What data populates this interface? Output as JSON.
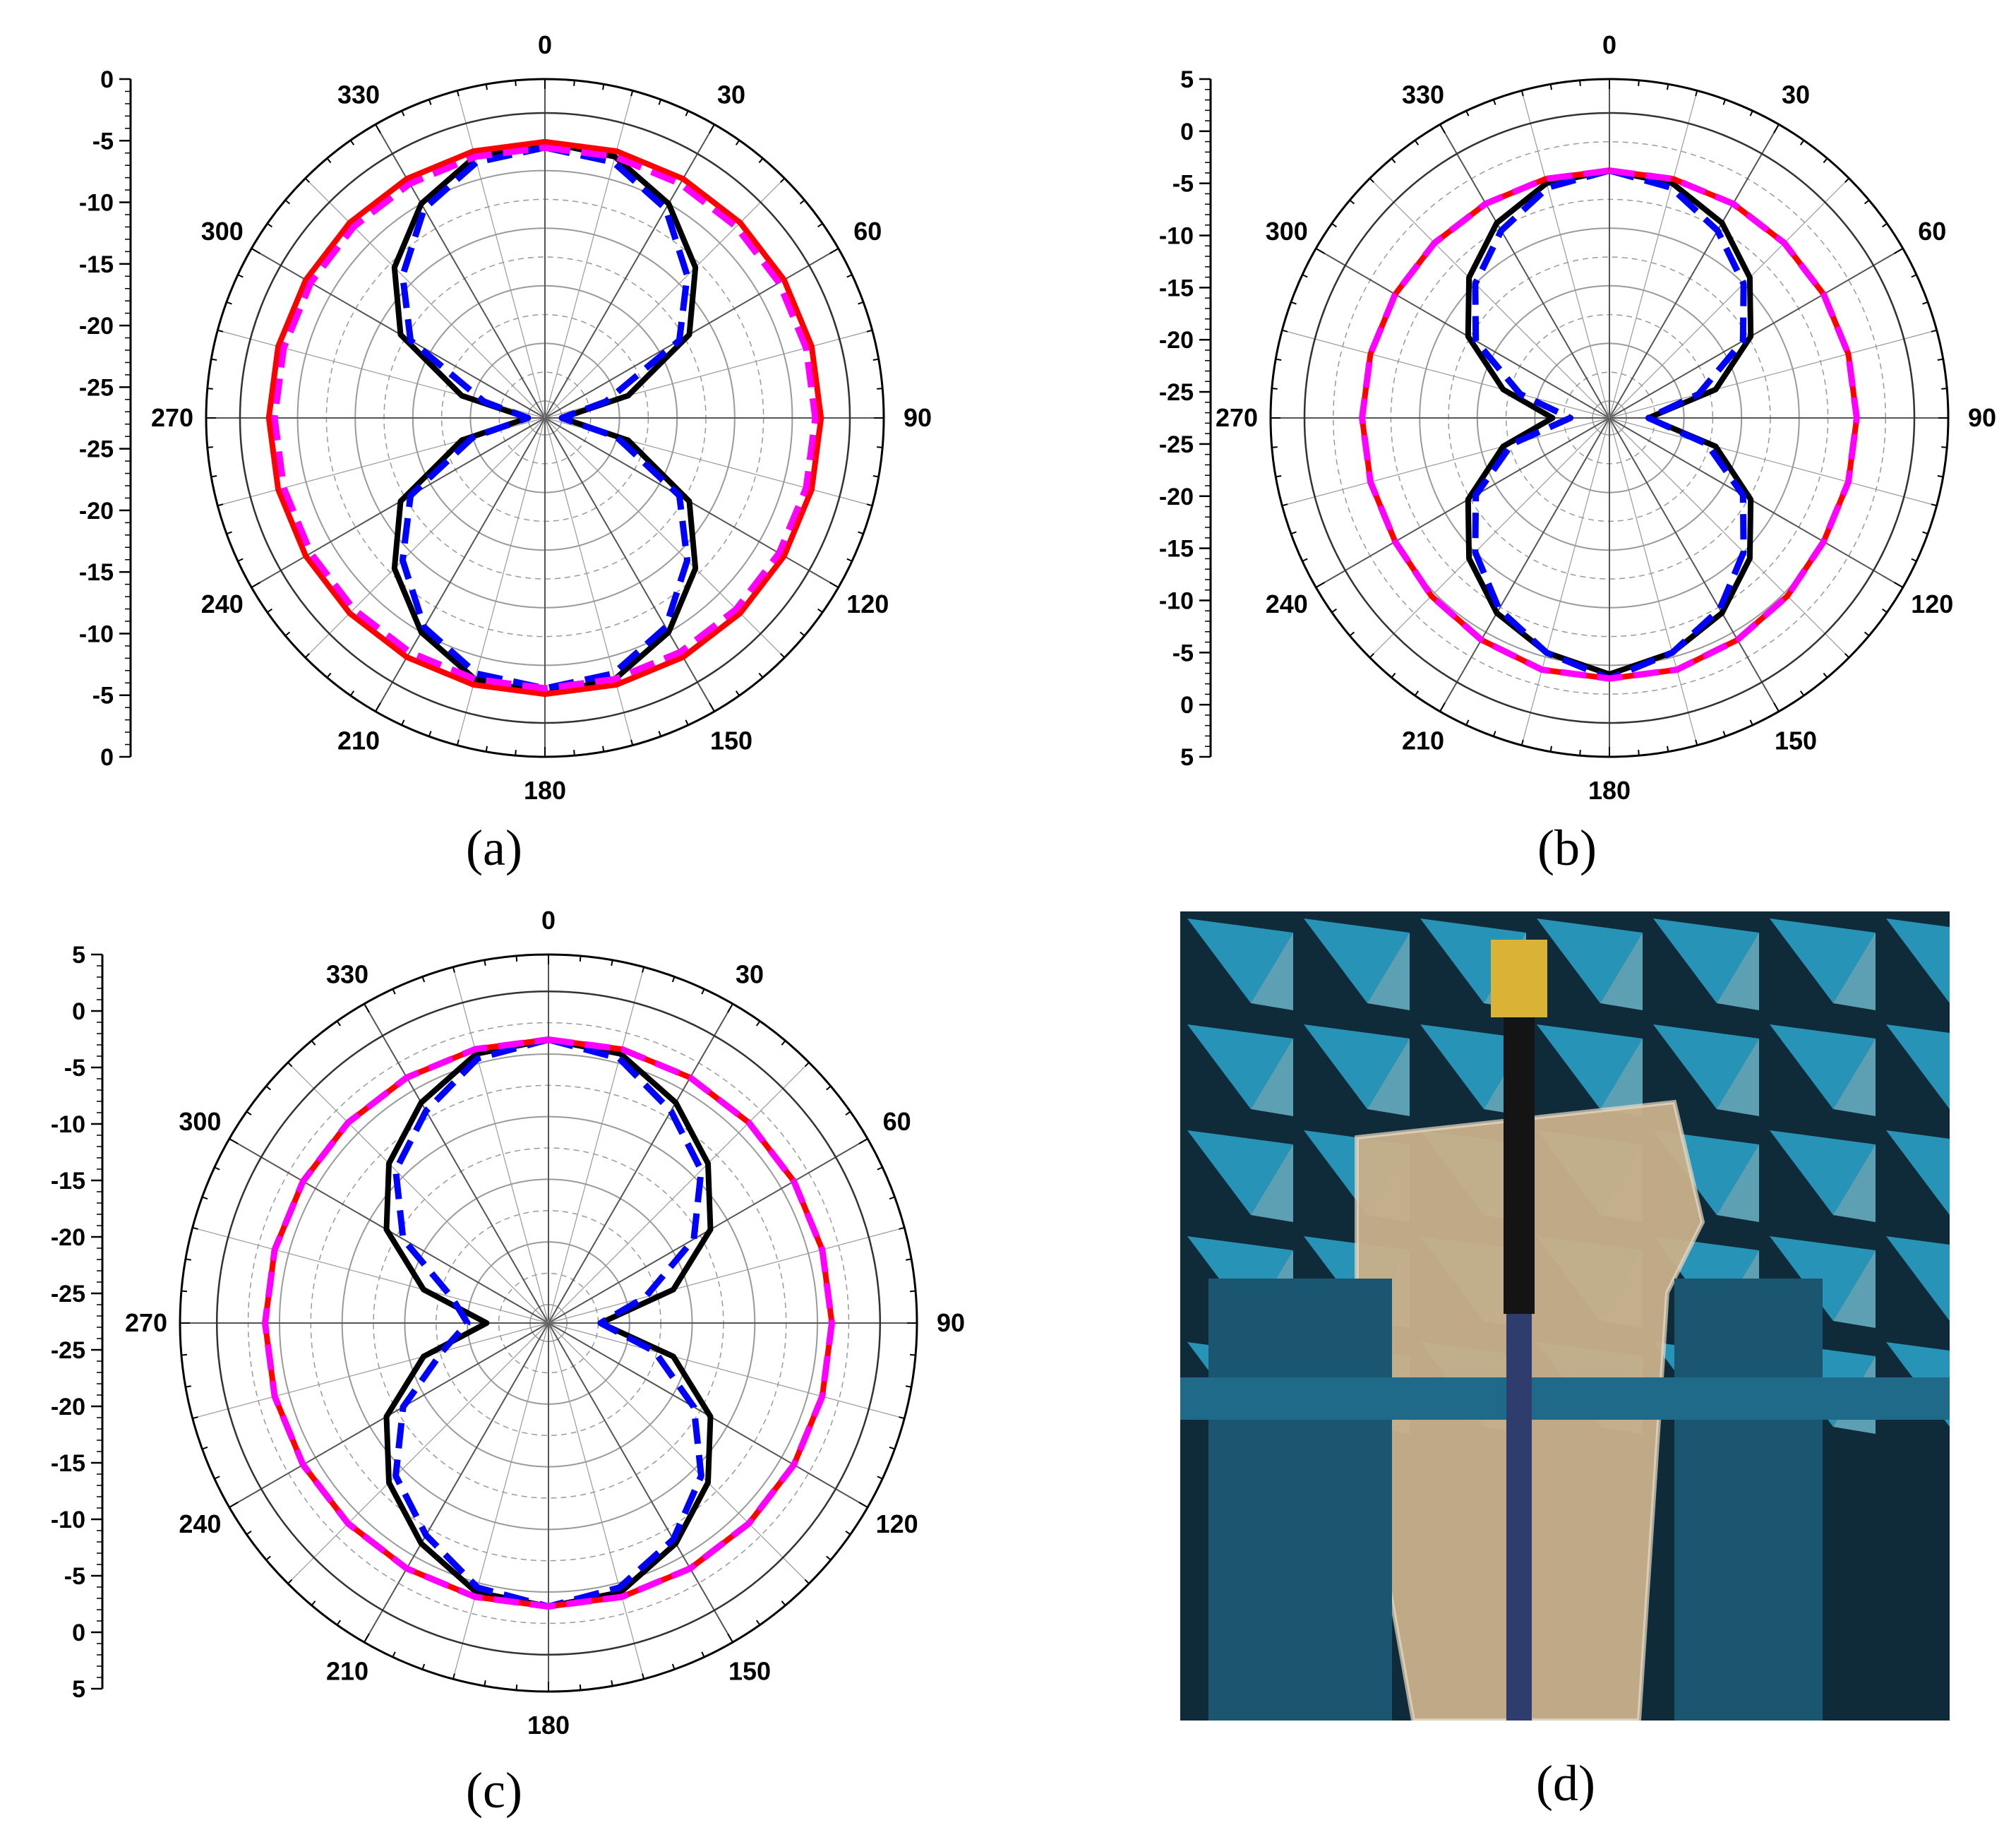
{
  "chart_data": [
    {
      "type": "polar-line",
      "panel": "a",
      "caption": "(a)",
      "angle_ticks": [
        "0",
        "30",
        "60",
        "90",
        "120",
        "150",
        "180",
        "210",
        "240",
        "270",
        "300",
        "330"
      ],
      "r_axis_labels": [
        "0",
        "-5",
        "-10",
        "-15",
        "-20",
        "-25",
        "-25",
        "-20",
        "-15",
        "-10",
        "-5",
        "0"
      ],
      "rlim": [
        -25,
        0
      ],
      "angles_deg": [
        0,
        15,
        30,
        45,
        60,
        75,
        90,
        105,
        120,
        135,
        150,
        165,
        180,
        195,
        210,
        225,
        240,
        255,
        270,
        285,
        300,
        315,
        330,
        345
      ],
      "series": [
        {
          "color": "#000000",
          "style": "solid",
          "values": [
            -2.5,
            -3,
            -5,
            -8,
            -12,
            -19,
            -25,
            -19,
            -12,
            -8,
            -5,
            -3,
            -2.5,
            -3,
            -5,
            -8,
            -12,
            -19,
            -25,
            -19,
            -12,
            -8,
            -5,
            -3
          ]
        },
        {
          "color": "#0000ff",
          "style": "dashed",
          "values": [
            -3,
            -3.5,
            -5.5,
            -9,
            -13,
            -21,
            -25,
            -20,
            -13,
            -9,
            -5.5,
            -3.5,
            -3,
            -3.5,
            -5.5,
            -9,
            -13,
            -20,
            -25,
            -21,
            -13,
            -9,
            -5.5,
            -3.5
          ]
        },
        {
          "color": "#ff0000",
          "style": "solid",
          "values": [
            -2.5,
            -2.5,
            -2.5,
            -2.5,
            -2.5,
            -2.5,
            -2.5,
            -2.5,
            -2.5,
            -2.5,
            -2.5,
            -2.5,
            -2.5,
            -2.5,
            -2.5,
            -2.5,
            -2.5,
            -2.5,
            -2.5,
            -2.5,
            -2.5,
            -2.5,
            -2.5,
            -2.5
          ]
        },
        {
          "color": "#ff00ff",
          "style": "dashed",
          "values": [
            -3,
            -3,
            -3,
            -3,
            -3,
            -3,
            -3,
            -3,
            -3,
            -3,
            -3,
            -3,
            -3,
            -3,
            -3,
            -3,
            -3,
            -3,
            -3,
            -3,
            -3,
            -3,
            -3,
            -3
          ]
        }
      ]
    },
    {
      "type": "polar-line",
      "panel": "b",
      "caption": "(b)",
      "angle_ticks": [
        "0",
        "30",
        "60",
        "90",
        "120",
        "150",
        "180",
        "210",
        "240",
        "270",
        "300",
        "330"
      ],
      "r_axis_labels": [
        "5",
        "0",
        "-5",
        "-10",
        "-15",
        "-20",
        "-25",
        "-25",
        "-20",
        "-15",
        "-10",
        "-5",
        "0",
        "5"
      ],
      "rlim": [
        -27.5,
        5
      ],
      "angles_deg": [
        0,
        15,
        30,
        45,
        60,
        75,
        90,
        105,
        120,
        135,
        150,
        165,
        180,
        195,
        210,
        225,
        240,
        255,
        270,
        285,
        300,
        315,
        330,
        345
      ],
      "series": [
        {
          "color": "#000000",
          "style": "solid",
          "values": [
            -1.5,
            -2,
            -4,
            -7,
            -11,
            -17,
            -25,
            -17,
            -11,
            -7,
            -4,
            -2,
            -0.5,
            -2,
            -4,
            -7,
            -11,
            -17,
            -23,
            -17,
            -11,
            -7,
            -4,
            -2
          ]
        },
        {
          "color": "#0000ff",
          "style": "dashed",
          "values": [
            -1.5,
            -2.5,
            -5,
            -8,
            -12,
            -19,
            -25,
            -18,
            -12,
            -8,
            -4.5,
            -2,
            0,
            -2,
            -4.5,
            -8,
            -12,
            -18,
            -25,
            -19,
            -12,
            -8,
            -5,
            -2.5
          ]
        },
        {
          "color": "#ff0000",
          "style": "solid",
          "values": [
            -1.5,
            -1.5,
            -1.5,
            -1.5,
            -1.5,
            -1.5,
            -1.5,
            -1.5,
            -1.5,
            -1,
            -0.5,
            0,
            0,
            0,
            -0.5,
            -1,
            -1.5,
            -1.5,
            -1.5,
            -1.5,
            -1.5,
            -1.5,
            -1.5,
            -1.5
          ]
        },
        {
          "color": "#ff00ff",
          "style": "dashed",
          "values": [
            -1.5,
            -1.5,
            -1.5,
            -1.5,
            -1.5,
            -1.5,
            -1.5,
            -1.5,
            -1.5,
            -1,
            -0.5,
            0,
            0,
            0,
            -0.5,
            -1,
            -1.5,
            -1.5,
            -1.5,
            -1.5,
            -1.5,
            -1.5,
            -1.5,
            -1.5
          ]
        }
      ]
    },
    {
      "type": "polar-line",
      "panel": "c",
      "caption": "(c)",
      "angle_ticks": [
        "0",
        "30",
        "60",
        "90",
        "120",
        "150",
        "180",
        "210",
        "240",
        "270",
        "300",
        "330"
      ],
      "r_axis_labels": [
        "5",
        "0",
        "-5",
        "-10",
        "-15",
        "-20",
        "-25",
        "-25",
        "-20",
        "-15",
        "-10",
        "-5",
        "0",
        "5"
      ],
      "rlim": [
        -27.5,
        5
      ],
      "angles_deg": [
        0,
        15,
        30,
        45,
        60,
        75,
        90,
        105,
        120,
        135,
        150,
        165,
        180,
        195,
        210,
        225,
        240,
        255,
        270,
        285,
        300,
        315,
        330,
        345
      ],
      "series": [
        {
          "color": "#000000",
          "style": "solid",
          "values": [
            0,
            -0.5,
            -3,
            -6,
            -10,
            -16,
            -24,
            -16,
            -10,
            -6,
            -3,
            -0.5,
            0,
            -0.5,
            -3,
            -6,
            -10,
            -16,
            -23,
            -16,
            -10,
            -6,
            -3,
            -0.5
          ]
        },
        {
          "color": "#0000ff",
          "style": "dashed",
          "values": [
            0,
            -1,
            -4,
            -7,
            -12,
            -19,
            -24,
            -18,
            -12,
            -7,
            -3.5,
            -1,
            0,
            -1,
            -4,
            -7,
            -12,
            -18,
            -21,
            -19,
            -12,
            -7,
            -4,
            -1
          ]
        },
        {
          "color": "#ff0000",
          "style": "solid",
          "values": [
            0,
            0,
            0,
            0,
            0,
            0,
            0,
            0,
            0,
            0,
            0,
            0,
            0,
            0,
            0,
            0,
            0,
            0,
            0,
            0,
            0,
            0,
            0,
            0
          ]
        },
        {
          "color": "#ff00ff",
          "style": "dashed",
          "values": [
            0,
            0,
            0,
            0,
            0,
            0,
            0,
            0,
            0,
            0,
            0,
            0,
            0,
            0,
            0,
            0,
            0,
            0,
            0,
            0,
            0,
            0,
            0,
            0
          ]
        }
      ]
    }
  ],
  "photo": {
    "caption": "(d)",
    "description_colors": {
      "foam": "#2a9fc4",
      "background": "#0f2a38",
      "phantom": "#c9b08a",
      "stand": "#1b5670"
    }
  }
}
